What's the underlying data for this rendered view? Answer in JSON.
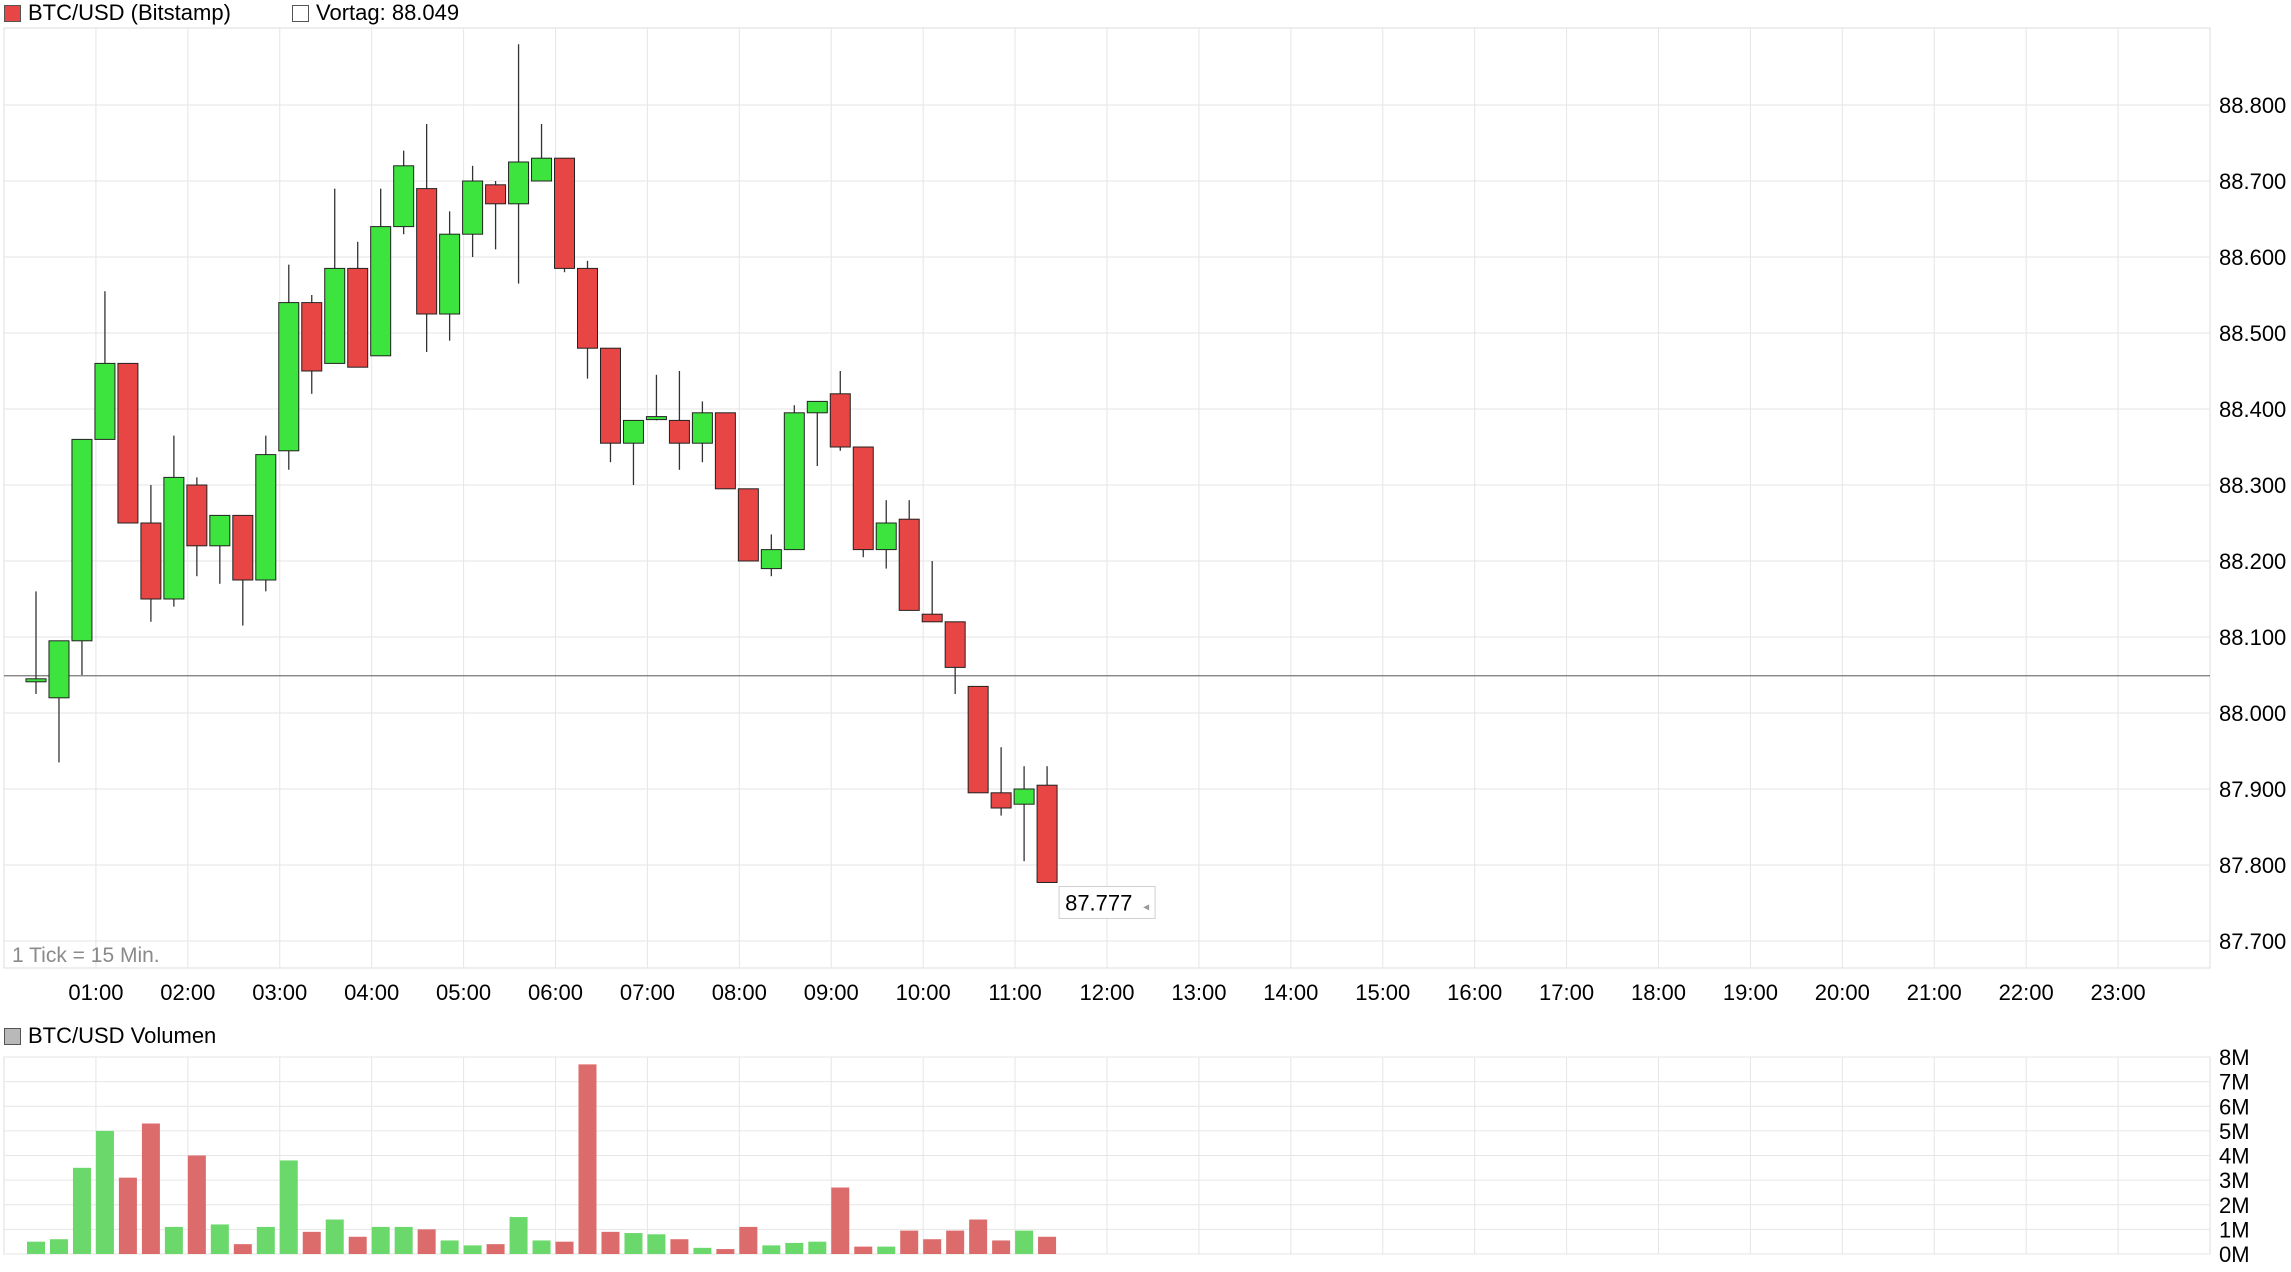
{
  "legend": {
    "main_label": "BTC/USD (Bitstamp)",
    "prev_close_label": "Vortag: 88.049",
    "volume_label": "BTC/USD Volumen"
  },
  "tick_note": "1 Tick = 15 Min.",
  "colors": {
    "up": "#3ee43e",
    "down": "#e84545",
    "volume_up": "#6bd86b",
    "volume_down": "#dc6b6b",
    "grid": "#e6e6e6"
  },
  "chart_data": [
    {
      "type": "candlestick",
      "title": "BTC/USD (Bitstamp)",
      "interval_minutes": 15,
      "prev_close": 88049,
      "last_price_label": "87.777",
      "y_ticks": [
        "88.800",
        "88.700",
        "88.600",
        "88.500",
        "88.400",
        "88.300",
        "88.200",
        "88.100",
        "88.000",
        "87.900",
        "87.800",
        "87.700"
      ],
      "y_tick_values": [
        88800,
        88700,
        88600,
        88500,
        88400,
        88300,
        88200,
        88100,
        88000,
        87900,
        87800,
        87700
      ],
      "ylim": [
        87650,
        88890
      ],
      "x_ticks": [
        "01:00",
        "02:00",
        "03:00",
        "04:00",
        "05:00",
        "06:00",
        "07:00",
        "08:00",
        "09:00",
        "10:00",
        "11:00",
        "12:00",
        "13:00",
        "14:00",
        "15:00",
        "16:00",
        "17:00",
        "18:00",
        "19:00",
        "20:00",
        "21:00",
        "22:00",
        "23:00"
      ],
      "x_range_hours": [
        0,
        24
      ],
      "candles": [
        {
          "t": "00:00",
          "o": 88045,
          "h": 88160,
          "l": 88025,
          "c": 88045
        },
        {
          "t": "00:15",
          "o": 88020,
          "h": 88095,
          "l": 87935,
          "c": 88095
        },
        {
          "t": "00:30",
          "o": 88095,
          "h": 88360,
          "l": 88050,
          "c": 88360
        },
        {
          "t": "00:45",
          "o": 88360,
          "h": 88555,
          "l": 88360,
          "c": 88460
        },
        {
          "t": "01:00",
          "o": 88460,
          "h": 88460,
          "l": 88250,
          "c": 88250
        },
        {
          "t": "01:15",
          "o": 88250,
          "h": 88300,
          "l": 88120,
          "c": 88150
        },
        {
          "t": "01:30",
          "o": 88150,
          "h": 88365,
          "l": 88140,
          "c": 88310
        },
        {
          "t": "01:45",
          "o": 88300,
          "h": 88310,
          "l": 88180,
          "c": 88220
        },
        {
          "t": "02:00",
          "o": 88220,
          "h": 88260,
          "l": 88170,
          "c": 88260
        },
        {
          "t": "02:15",
          "o": 88260,
          "h": 88260,
          "l": 88115,
          "c": 88175
        },
        {
          "t": "02:30",
          "o": 88175,
          "h": 88365,
          "l": 88160,
          "c": 88340
        },
        {
          "t": "02:45",
          "o": 88345,
          "h": 88590,
          "l": 88320,
          "c": 88540
        },
        {
          "t": "03:00",
          "o": 88540,
          "h": 88550,
          "l": 88420,
          "c": 88450
        },
        {
          "t": "03:15",
          "o": 88460,
          "h": 88690,
          "l": 88460,
          "c": 88585
        },
        {
          "t": "03:30",
          "o": 88585,
          "h": 88620,
          "l": 88455,
          "c": 88455
        },
        {
          "t": "03:45",
          "o": 88470,
          "h": 88690,
          "l": 88470,
          "c": 88640
        },
        {
          "t": "04:00",
          "o": 88640,
          "h": 88740,
          "l": 88630,
          "c": 88720
        },
        {
          "t": "04:15",
          "o": 88690,
          "h": 88775,
          "l": 88475,
          "c": 88525
        },
        {
          "t": "04:30",
          "o": 88525,
          "h": 88660,
          "l": 88490,
          "c": 88630
        },
        {
          "t": "04:45",
          "o": 88630,
          "h": 88720,
          "l": 88600,
          "c": 88700
        },
        {
          "t": "05:00",
          "o": 88695,
          "h": 88700,
          "l": 88610,
          "c": 88670
        },
        {
          "t": "05:15",
          "o": 88670,
          "h": 88880,
          "l": 88565,
          "c": 88725
        },
        {
          "t": "05:30",
          "o": 88700,
          "h": 88775,
          "l": 88700,
          "c": 88730
        },
        {
          "t": "05:45",
          "o": 88730,
          "h": 88730,
          "l": 88580,
          "c": 88585
        },
        {
          "t": "06:00",
          "o": 88585,
          "h": 88595,
          "l": 88440,
          "c": 88480
        },
        {
          "t": "06:15",
          "o": 88480,
          "h": 88480,
          "l": 88330,
          "c": 88355
        },
        {
          "t": "06:30",
          "o": 88355,
          "h": 88385,
          "l": 88300,
          "c": 88385
        },
        {
          "t": "06:45",
          "o": 88390,
          "h": 88445,
          "l": 88385,
          "c": 88390
        },
        {
          "t": "07:00",
          "o": 88385,
          "h": 88450,
          "l": 88320,
          "c": 88355
        },
        {
          "t": "07:15",
          "o": 88355,
          "h": 88410,
          "l": 88330,
          "c": 88395
        },
        {
          "t": "07:30",
          "o": 88395,
          "h": 88395,
          "l": 88295,
          "c": 88295
        },
        {
          "t": "07:45",
          "o": 88295,
          "h": 88295,
          "l": 88200,
          "c": 88200
        },
        {
          "t": "08:00",
          "o": 88190,
          "h": 88235,
          "l": 88180,
          "c": 88215
        },
        {
          "t": "08:15",
          "o": 88215,
          "h": 88405,
          "l": 88215,
          "c": 88395
        },
        {
          "t": "08:30",
          "o": 88395,
          "h": 88410,
          "l": 88325,
          "c": 88410
        },
        {
          "t": "08:45",
          "o": 88420,
          "h": 88450,
          "l": 88345,
          "c": 88350
        },
        {
          "t": "09:00",
          "o": 88350,
          "h": 88350,
          "l": 88205,
          "c": 88215
        },
        {
          "t": "09:15",
          "o": 88215,
          "h": 88280,
          "l": 88190,
          "c": 88250
        },
        {
          "t": "09:30",
          "o": 88255,
          "h": 88280,
          "l": 88135,
          "c": 88135
        },
        {
          "t": "09:45",
          "o": 88130,
          "h": 88200,
          "l": 88125,
          "c": 88120
        },
        {
          "t": "10:00",
          "o": 88120,
          "h": 88120,
          "l": 88025,
          "c": 88060
        },
        {
          "t": "10:15",
          "o": 88035,
          "h": 88035,
          "l": 87895,
          "c": 87895
        },
        {
          "t": "10:30",
          "o": 87895,
          "h": 87955,
          "l": 87865,
          "c": 87875
        },
        {
          "t": "10:45",
          "o": 87880,
          "h": 87930,
          "l": 87805,
          "c": 87900
        },
        {
          "t": "11:00",
          "o": 87905,
          "h": 87930,
          "l": 87777,
          "c": 87777
        }
      ]
    },
    {
      "type": "bar",
      "title": "BTC/USD Volumen",
      "unit": "M",
      "y_ticks": [
        "8M",
        "7M",
        "6M",
        "5M",
        "4M",
        "3M",
        "2M",
        "1M",
        "0M"
      ],
      "y_tick_values": [
        8,
        7,
        6,
        5,
        4,
        3,
        2,
        1,
        0
      ],
      "ylim": [
        0,
        8
      ],
      "values": [
        0.5,
        0.6,
        3.5,
        5.0,
        3.1,
        5.3,
        1.1,
        4.0,
        1.2,
        0.4,
        1.1,
        3.8,
        0.9,
        1.4,
        0.7,
        1.1,
        1.1,
        1.0,
        0.55,
        0.35,
        0.4,
        1.5,
        0.55,
        0.5,
        7.7,
        0.9,
        0.85,
        0.8,
        0.6,
        0.25,
        0.2,
        1.1,
        0.35,
        0.45,
        0.5,
        2.7,
        0.3,
        0.3,
        0.95,
        0.6,
        0.95,
        1.4,
        0.55,
        0.95,
        0.7
      ],
      "directions": [
        "u",
        "u",
        "u",
        "u",
        "d",
        "d",
        "u",
        "d",
        "u",
        "d",
        "u",
        "u",
        "d",
        "u",
        "d",
        "u",
        "u",
        "d",
        "u",
        "u",
        "d",
        "u",
        "u",
        "d",
        "d",
        "d",
        "u",
        "u",
        "d",
        "u",
        "d",
        "d",
        "u",
        "u",
        "u",
        "d",
        "d",
        "u",
        "d",
        "d",
        "d",
        "d",
        "d",
        "u",
        "d"
      ]
    }
  ]
}
